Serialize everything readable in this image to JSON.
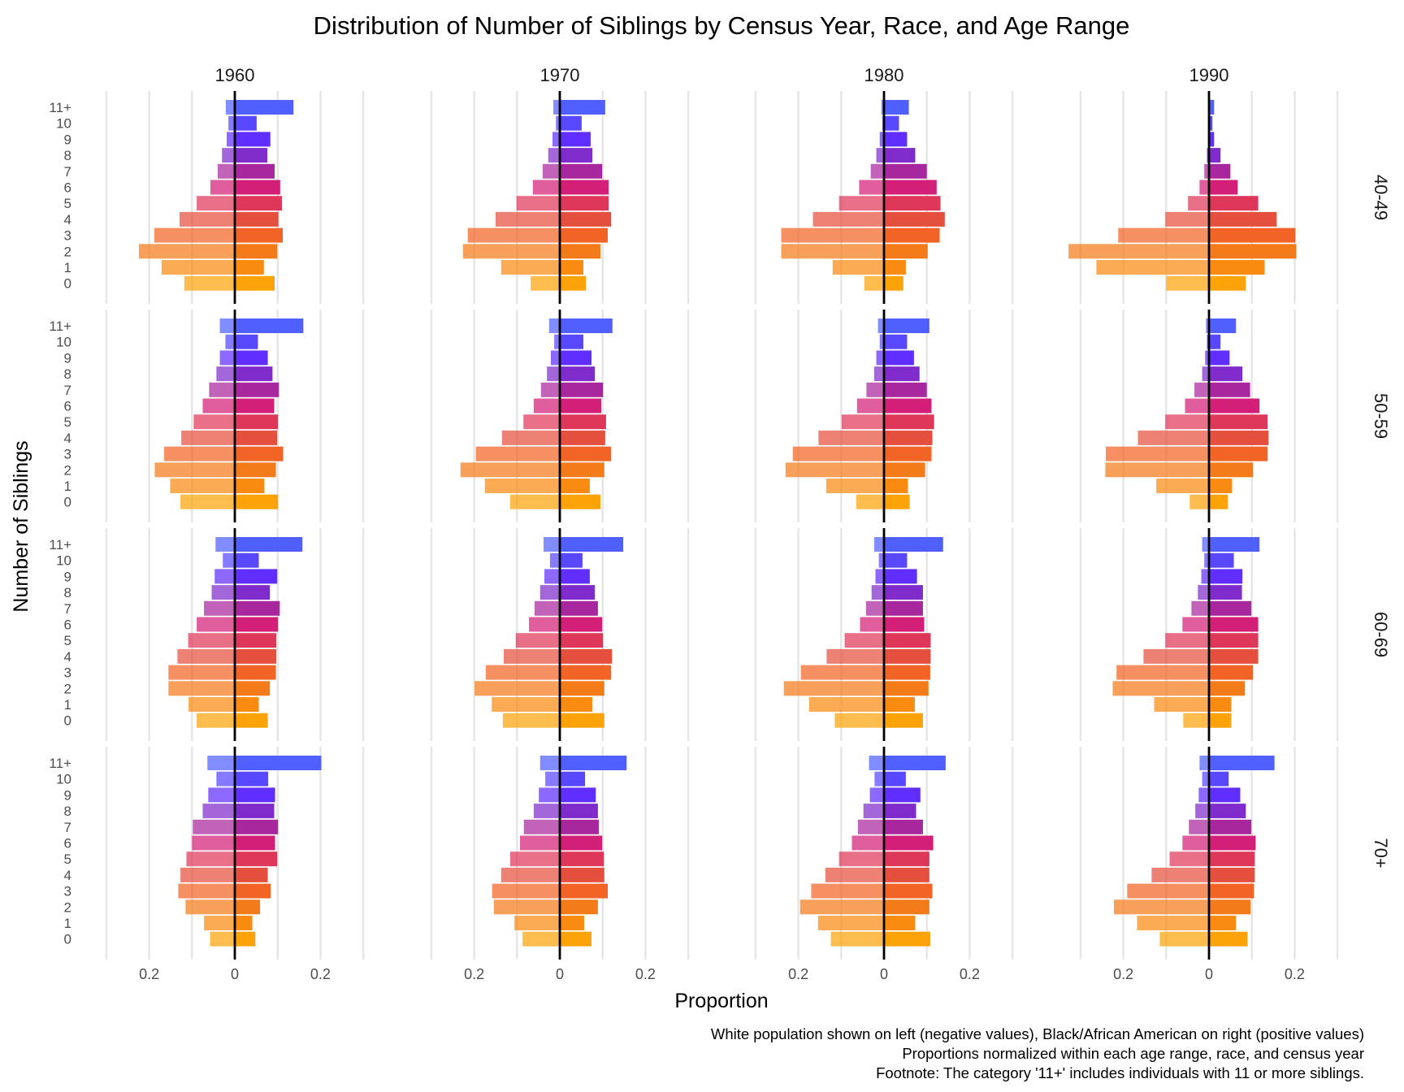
{
  "chart_data": {
    "type": "bar",
    "orientation": "horizontal",
    "layout": "facet-grid population pyramid",
    "title": "Distribution of Number of Siblings by Census Year, Race, and Age Range",
    "xlabel": "Proportion",
    "ylabel": "Number of Siblings",
    "xlim": [
      -0.3,
      0.3
    ],
    "x_ticks": [
      -0.2,
      0,
      0.2
    ],
    "x_tick_labels": [
      "0.2",
      "0",
      "0.2"
    ],
    "grid": true,
    "legend": "none",
    "captions": [
      "White population shown on left (negative values), Black/African American on right (positive values)",
      "Proportions normalized within each age range, race, and census year",
      "Footnote: The category '11+' includes individuals with 11 or more siblings."
    ],
    "columns": [
      "1960",
      "1970",
      "1980",
      "1990"
    ],
    "rows": [
      "40-49",
      "50-59",
      "60-69",
      "70+"
    ],
    "categories": [
      "11+",
      "10",
      "9",
      "8",
      "7",
      "6",
      "5",
      "4",
      "3",
      "2",
      "1",
      "0"
    ],
    "category_colors": [
      "#5060ff",
      "#5848ff",
      "#602eff",
      "#802ccc",
      "#a8279e",
      "#d41f78",
      "#de375a",
      "#e5503e",
      "#f26426",
      "#f47b1a",
      "#f88b10",
      "#fca30a"
    ],
    "series_names": {
      "left": "White",
      "right": "Black/African American"
    },
    "panels": [
      {
        "year": "1960",
        "age": "40-49",
        "white": [
          0.021,
          0.015,
          0.019,
          0.03,
          0.04,
          0.057,
          0.089,
          0.129,
          0.188,
          0.224,
          0.171,
          0.118
        ],
        "black": [
          0.137,
          0.051,
          0.083,
          0.076,
          0.093,
          0.106,
          0.11,
          0.102,
          0.112,
          0.099,
          0.068,
          0.093
        ]
      },
      {
        "year": "1970",
        "age": "40-49",
        "white": [
          0.015,
          0.009,
          0.017,
          0.027,
          0.04,
          0.063,
          0.101,
          0.15,
          0.215,
          0.226,
          0.137,
          0.068
        ],
        "black": [
          0.106,
          0.051,
          0.072,
          0.076,
          0.099,
          0.114,
          0.114,
          0.12,
          0.112,
          0.095,
          0.055,
          0.061
        ]
      },
      {
        "year": "1980",
        "age": "40-49",
        "white": [
          0.006,
          0.004,
          0.01,
          0.018,
          0.031,
          0.058,
          0.105,
          0.166,
          0.24,
          0.24,
          0.12,
          0.046
        ],
        "black": [
          0.058,
          0.035,
          0.054,
          0.073,
          0.1,
          0.123,
          0.132,
          0.142,
          0.13,
          0.102,
          0.051,
          0.045
        ]
      },
      {
        "year": "1990",
        "age": "40-49",
        "white": [
          0.001,
          0.001,
          0.001,
          0.005,
          0.011,
          0.022,
          0.049,
          0.102,
          0.212,
          0.328,
          0.263,
          0.1
        ],
        "black": [
          0.012,
          0.008,
          0.012,
          0.027,
          0.05,
          0.067,
          0.115,
          0.158,
          0.202,
          0.204,
          0.13,
          0.086
        ]
      },
      {
        "year": "1960",
        "age": "50-59",
        "white": [
          0.035,
          0.022,
          0.035,
          0.043,
          0.06,
          0.075,
          0.096,
          0.125,
          0.165,
          0.187,
          0.151,
          0.127
        ],
        "black": [
          0.16,
          0.054,
          0.077,
          0.088,
          0.103,
          0.092,
          0.101,
          0.099,
          0.113,
          0.096,
          0.069,
          0.101
        ]
      },
      {
        "year": "1970",
        "age": "50-59",
        "white": [
          0.025,
          0.013,
          0.021,
          0.03,
          0.044,
          0.061,
          0.085,
          0.135,
          0.196,
          0.232,
          0.175,
          0.116
        ],
        "black": [
          0.123,
          0.055,
          0.074,
          0.082,
          0.101,
          0.097,
          0.108,
          0.106,
          0.12,
          0.104,
          0.07,
          0.095
        ]
      },
      {
        "year": "1980",
        "age": "50-59",
        "white": [
          0.014,
          0.01,
          0.018,
          0.023,
          0.041,
          0.063,
          0.099,
          0.153,
          0.213,
          0.23,
          0.135,
          0.065
        ],
        "black": [
          0.106,
          0.054,
          0.07,
          0.083,
          0.1,
          0.111,
          0.117,
          0.113,
          0.111,
          0.096,
          0.056,
          0.06
        ]
      },
      {
        "year": "1990",
        "age": "50-59",
        "white": [
          0.007,
          0.005,
          0.009,
          0.016,
          0.034,
          0.056,
          0.102,
          0.166,
          0.241,
          0.242,
          0.123,
          0.045
        ],
        "black": [
          0.063,
          0.027,
          0.048,
          0.078,
          0.096,
          0.118,
          0.137,
          0.139,
          0.137,
          0.103,
          0.054,
          0.044
        ]
      },
      {
        "year": "1960",
        "age": "60-69",
        "white": [
          0.045,
          0.028,
          0.047,
          0.054,
          0.072,
          0.089,
          0.109,
          0.134,
          0.155,
          0.155,
          0.108,
          0.089
        ],
        "black": [
          0.158,
          0.056,
          0.099,
          0.082,
          0.105,
          0.101,
          0.097,
          0.097,
          0.096,
          0.082,
          0.056,
          0.077
        ]
      },
      {
        "year": "1970",
        "age": "60-69",
        "white": [
          0.038,
          0.023,
          0.036,
          0.046,
          0.059,
          0.072,
          0.103,
          0.131,
          0.173,
          0.199,
          0.159,
          0.133
        ],
        "black": [
          0.148,
          0.053,
          0.07,
          0.082,
          0.089,
          0.099,
          0.101,
          0.122,
          0.12,
          0.104,
          0.076,
          0.104
        ]
      },
      {
        "year": "1980",
        "age": "60-69",
        "white": [
          0.023,
          0.012,
          0.02,
          0.029,
          0.042,
          0.056,
          0.092,
          0.134,
          0.194,
          0.234,
          0.175,
          0.115
        ],
        "black": [
          0.138,
          0.054,
          0.077,
          0.091,
          0.091,
          0.094,
          0.109,
          0.109,
          0.108,
          0.104,
          0.072,
          0.091
        ]
      },
      {
        "year": "1990",
        "age": "60-69",
        "white": [
          0.016,
          0.011,
          0.018,
          0.026,
          0.041,
          0.062,
          0.102,
          0.153,
          0.216,
          0.225,
          0.128,
          0.06
        ],
        "black": [
          0.118,
          0.058,
          0.078,
          0.077,
          0.099,
          0.115,
          0.115,
          0.115,
          0.103,
          0.084,
          0.052,
          0.052
        ]
      },
      {
        "year": "1960",
        "age": "70+",
        "white": [
          0.064,
          0.043,
          0.062,
          0.075,
          0.098,
          0.1,
          0.113,
          0.127,
          0.132,
          0.115,
          0.072,
          0.058
        ],
        "black": [
          0.202,
          0.078,
          0.094,
          0.092,
          0.101,
          0.094,
          0.099,
          0.077,
          0.084,
          0.059,
          0.041,
          0.048
        ]
      },
      {
        "year": "1970",
        "age": "70+",
        "white": [
          0.046,
          0.034,
          0.049,
          0.061,
          0.084,
          0.093,
          0.116,
          0.137,
          0.158,
          0.154,
          0.106,
          0.087
        ],
        "black": [
          0.156,
          0.059,
          0.084,
          0.089,
          0.091,
          0.099,
          0.103,
          0.104,
          0.112,
          0.089,
          0.057,
          0.074
        ]
      },
      {
        "year": "1980",
        "age": "70+",
        "white": [
          0.035,
          0.022,
          0.033,
          0.048,
          0.061,
          0.075,
          0.105,
          0.137,
          0.17,
          0.196,
          0.154,
          0.124
        ],
        "black": [
          0.144,
          0.051,
          0.085,
          0.075,
          0.091,
          0.115,
          0.106,
          0.106,
          0.113,
          0.106,
          0.073,
          0.108
        ]
      },
      {
        "year": "1990",
        "age": "70+",
        "white": [
          0.022,
          0.016,
          0.024,
          0.032,
          0.047,
          0.062,
          0.092,
          0.134,
          0.191,
          0.222,
          0.168,
          0.115
        ],
        "black": [
          0.153,
          0.046,
          0.073,
          0.086,
          0.099,
          0.109,
          0.107,
          0.107,
          0.105,
          0.097,
          0.063,
          0.09
        ]
      }
    ]
  }
}
